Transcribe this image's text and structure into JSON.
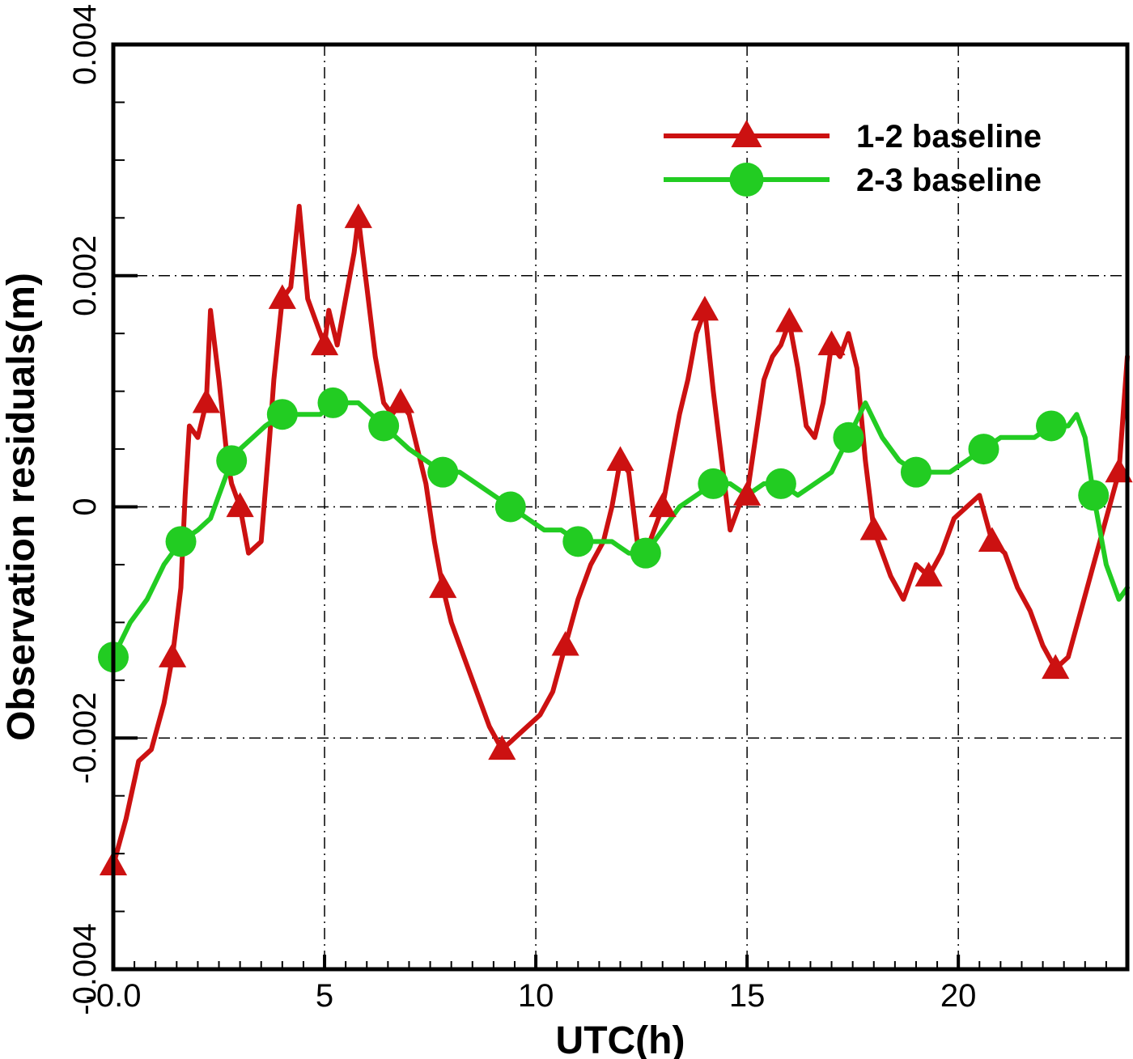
{
  "chart_data": {
    "type": "line",
    "xlabel": "UTC(h)",
    "ylabel": "Observation residuals(m)",
    "xlim": [
      0,
      24
    ],
    "ylim": [
      -0.004,
      0.004
    ],
    "x_ticks": [
      0,
      5,
      10,
      15,
      20
    ],
    "x_tick_labels": [
      "-0.0",
      "5",
      "10",
      "15",
      "20"
    ],
    "y_ticks": [
      -0.004,
      -0.002,
      0,
      0.002,
      0.004
    ],
    "y_tick_labels": [
      "-0.004",
      "-0.002",
      "0",
      "0.002",
      "0.004"
    ],
    "grid": true,
    "legend_position": "top-right",
    "series": [
      {
        "name": "1-2 baseline",
        "color": "#cc1111",
        "marker": "triangle",
        "x": [
          0,
          0.3,
          0.6,
          0.9,
          1.2,
          1.4,
          1.6,
          1.7,
          1.8,
          2.0,
          2.2,
          2.3,
          2.5,
          2.7,
          2.8,
          3.0,
          3.2,
          3.5,
          3.7,
          3.8,
          4.0,
          4.2,
          4.4,
          4.6,
          4.8,
          5.0,
          5.1,
          5.3,
          5.5,
          5.7,
          5.8,
          6.0,
          6.2,
          6.4,
          6.6,
          6.8,
          7.0,
          7.2,
          7.4,
          7.6,
          7.8,
          8.0,
          8.3,
          8.6,
          8.9,
          9.2,
          9.5,
          9.8,
          10.1,
          10.4,
          10.7,
          11.0,
          11.3,
          11.6,
          11.8,
          12.0,
          12.2,
          12.4,
          12.6,
          12.8,
          13.0,
          13.2,
          13.4,
          13.6,
          13.8,
          14.0,
          14.2,
          14.4,
          14.6,
          14.8,
          15.0,
          15.2,
          15.4,
          15.6,
          15.8,
          16.0,
          16.2,
          16.4,
          16.6,
          16.8,
          17.0,
          17.2,
          17.4,
          17.6,
          17.8,
          18.0,
          18.2,
          18.4,
          18.7,
          19.0,
          19.3,
          19.6,
          19.9,
          20.2,
          20.5,
          20.8,
          21.1,
          21.4,
          21.7,
          22.0,
          22.3,
          22.6,
          22.9,
          23.2,
          23.5,
          23.8,
          24.0
        ],
        "y": [
          -0.0031,
          -0.0027,
          -0.0022,
          -0.0021,
          -0.0017,
          -0.0013,
          -0.0007,
          0.0001,
          0.0007,
          0.0006,
          0.0009,
          0.0017,
          0.0011,
          0.0004,
          0.0002,
          0.0,
          -0.0004,
          -0.0003,
          0.0006,
          0.0011,
          0.0018,
          0.0019,
          0.0026,
          0.0018,
          0.0016,
          0.0014,
          0.0017,
          0.0014,
          0.0018,
          0.0022,
          0.0025,
          0.0019,
          0.0013,
          0.0009,
          0.0008,
          0.0009,
          0.0008,
          0.0005,
          0.0002,
          -0.0003,
          -0.0007,
          -0.001,
          -0.0013,
          -0.0016,
          -0.0019,
          -0.0021,
          -0.002,
          -0.0019,
          -0.0018,
          -0.0016,
          -0.0012,
          -0.0008,
          -0.0005,
          -0.0003,
          0.0,
          0.0004,
          0.0003,
          -0.0003,
          -0.0004,
          -0.0002,
          0.0,
          0.0004,
          0.0008,
          0.0011,
          0.0015,
          0.0017,
          0.001,
          0.0004,
          -0.0002,
          0.0,
          0.0001,
          0.0006,
          0.0011,
          0.0013,
          0.0014,
          0.0016,
          0.0012,
          0.0007,
          0.0006,
          0.0009,
          0.0014,
          0.0013,
          0.0015,
          0.0012,
          0.0004,
          -0.0002,
          -0.0004,
          -0.0006,
          -0.0008,
          -0.0005,
          -0.0006,
          -0.0004,
          -0.0001,
          0.0,
          0.0001,
          -0.0003,
          -0.0004,
          -0.0007,
          -0.0009,
          -0.0012,
          -0.0014,
          -0.0013,
          -0.0009,
          -0.0005,
          -0.0001,
          0.0003,
          0.0013
        ]
      },
      {
        "name": "2-3 baseline",
        "color": "#22cc22",
        "marker": "circle",
        "x": [
          0,
          0.4,
          0.8,
          1.2,
          1.6,
          2.0,
          2.3,
          2.5,
          2.8,
          3.0,
          3.3,
          3.6,
          4.0,
          4.3,
          4.6,
          4.9,
          5.2,
          5.5,
          5.8,
          6.1,
          6.4,
          6.7,
          7.0,
          7.4,
          7.8,
          8.2,
          8.6,
          9.0,
          9.4,
          9.8,
          10.2,
          10.6,
          11.0,
          11.4,
          11.8,
          12.2,
          12.6,
          13.0,
          13.4,
          13.8,
          14.2,
          14.6,
          15.0,
          15.4,
          15.8,
          16.2,
          16.6,
          17.0,
          17.4,
          17.8,
          18.2,
          18.6,
          19.0,
          19.4,
          19.8,
          20.2,
          20.6,
          21.0,
          21.4,
          21.8,
          22.2,
          22.6,
          22.8,
          23.0,
          23.2,
          23.5,
          23.8,
          24.0
        ],
        "y": [
          -0.0013,
          -0.001,
          -0.0008,
          -0.0005,
          -0.0003,
          -0.0002,
          -0.0001,
          0.0001,
          0.0004,
          0.0005,
          0.0006,
          0.0007,
          0.0008,
          0.0008,
          0.0008,
          0.0008,
          0.0009,
          0.0009,
          0.0009,
          0.0008,
          0.0007,
          0.0006,
          0.0005,
          0.0004,
          0.0003,
          0.0003,
          0.0002,
          0.0001,
          0.0,
          -0.0001,
          -0.0002,
          -0.0002,
          -0.0003,
          -0.0003,
          -0.0003,
          -0.0004,
          -0.0004,
          -0.0002,
          0.0,
          0.0001,
          0.0002,
          0.0002,
          0.0001,
          0.0002,
          0.0002,
          0.0001,
          0.0002,
          0.0003,
          0.0006,
          0.0009,
          0.0006,
          0.0004,
          0.0003,
          0.0003,
          0.0003,
          0.0004,
          0.0005,
          0.0006,
          0.0006,
          0.0006,
          0.0007,
          0.0007,
          0.0008,
          0.0006,
          0.0001,
          -0.0005,
          -0.0008,
          -0.0007
        ]
      }
    ]
  }
}
